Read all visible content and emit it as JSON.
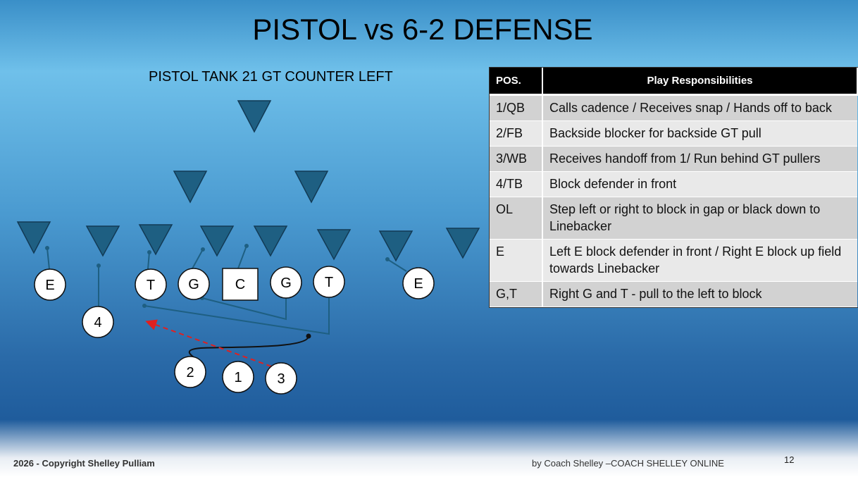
{
  "header": {
    "title": "PISTOL vs 6-2 DEFENSE",
    "subtitle": "PISTOL TANK 21 GT COUNTER LEFT"
  },
  "players": {
    "left_end": "E",
    "back_4": "4",
    "left_tackle": "T",
    "left_guard": "G",
    "center": "C",
    "right_guard": "G",
    "right_tackle": "T",
    "right_end": "E",
    "back_2": "2",
    "back_1": "1",
    "back_3": "3"
  },
  "table": {
    "headers": [
      "POS.",
      "Play Responsibilities"
    ],
    "rows": [
      [
        "1/QB",
        "Calls cadence / Receives snap / Hands off to back"
      ],
      [
        "2/FB",
        "Backside blocker for backside GT pull"
      ],
      [
        "3/WB",
        "Receives handoff from 1/ Run behind GT pullers"
      ],
      [
        "4/TB",
        "Block defender in front"
      ],
      [
        "OL",
        "Step left or right to block in gap or black down to Linebacker"
      ],
      [
        "E",
        "Left E block defender in front / Right E block up field towards Linebacker"
      ],
      [
        "G,T",
        "Right G and T -  pull to the left to block"
      ]
    ]
  },
  "footer": {
    "copyright": "2026 - Copyright Shelley Pulliam",
    "credit": "by Coach Shelley –COACH SHELLEY ONLINE",
    "page_number": "12"
  }
}
